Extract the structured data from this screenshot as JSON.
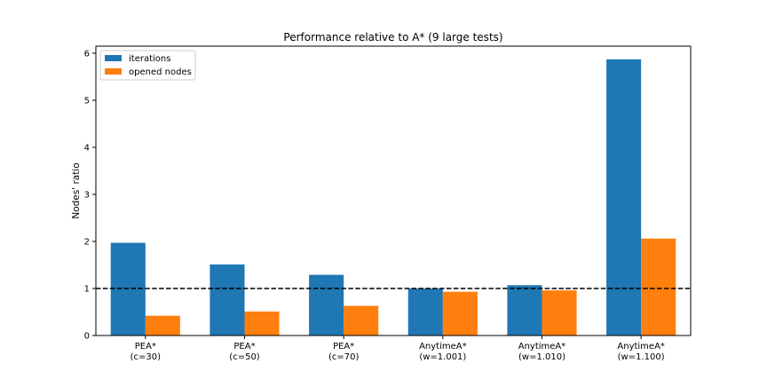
{
  "chart_data": {
    "type": "bar",
    "title": "Performance relative to A* (9 large tests)",
    "xlabel": "",
    "ylabel": "Nodes' ratio",
    "categories": [
      [
        "PEA*",
        "(c=30)"
      ],
      [
        "PEA*",
        "(c=50)"
      ],
      [
        "PEA*",
        "(c=70)"
      ],
      [
        "AnytimeA*",
        "(w=1.001)"
      ],
      [
        "AnytimeA*",
        "(w=1.010)"
      ],
      [
        "AnytimeA*",
        "(w=1.100)"
      ]
    ],
    "series": [
      {
        "name": "iterations",
        "color": "#1f77b4",
        "values": [
          1.97,
          1.51,
          1.29,
          1.0,
          1.07,
          5.87
        ]
      },
      {
        "name": "opened nodes",
        "color": "#ff7f0e",
        "values": [
          0.42,
          0.51,
          0.63,
          0.93,
          0.96,
          2.06
        ]
      }
    ],
    "ylim": [
      0,
      6.15
    ],
    "yticks": [
      0,
      1,
      2,
      3,
      4,
      5,
      6
    ],
    "reference_line": {
      "value": 1,
      "style": "dashed",
      "color": "#000000"
    },
    "legend": {
      "placement": "top-left"
    },
    "grid": false
  }
}
